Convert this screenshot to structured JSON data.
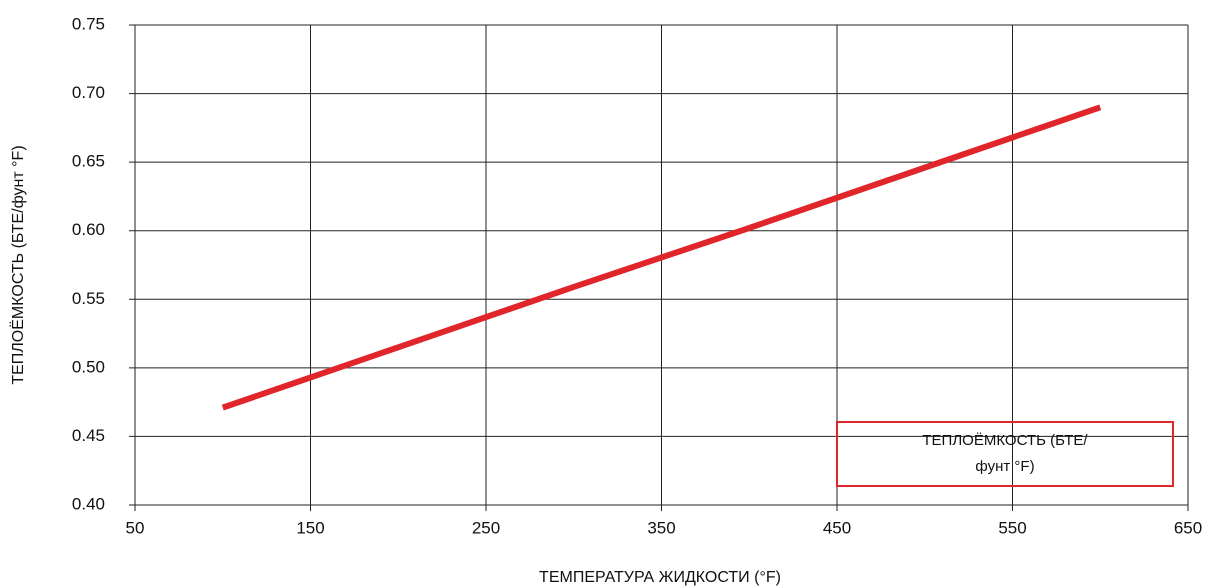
{
  "chart_data": {
    "type": "line",
    "x_label": "ТЕМПЕРАТУРА ЖИДКОСТИ (°F)",
    "y_label": "ТЕПЛОЁМКОСТЬ (БТЕ/фунт °F)",
    "x": [
      100,
      200,
      300,
      400,
      500,
      600
    ],
    "series": [
      {
        "name": "ТЕПЛОЁМКОСТЬ (БТЕ/фунт °F)",
        "color": "#e0252b",
        "values": [
          0.471,
          0.515,
          0.559,
          0.602,
          0.646,
          0.69
        ]
      }
    ],
    "xlim": [
      50,
      650
    ],
    "xticks": [
      50,
      150,
      250,
      350,
      450,
      550,
      650
    ],
    "ylim": [
      0.4,
      0.75
    ],
    "yticks": [
      {
        "value": 0.4,
        "label": "0.40"
      },
      0.45,
      {
        "value": 0.5,
        "label": "0.50"
      },
      0.55,
      {
        "value": 0.6,
        "label": "0.60"
      },
      0.65,
      {
        "value": 0.7,
        "label": "0.70"
      },
      0.75
    ],
    "grid": true,
    "legend": "lower right"
  }
}
